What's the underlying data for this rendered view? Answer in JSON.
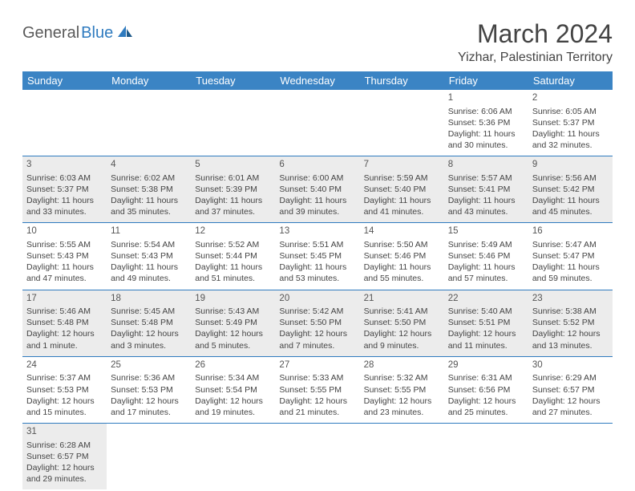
{
  "logo": {
    "part1": "General",
    "part2": "Blue"
  },
  "title": "March 2024",
  "location": "Yizhar, Palestinian Territory",
  "day_headers": [
    "Sunday",
    "Monday",
    "Tuesday",
    "Wednesday",
    "Thursday",
    "Friday",
    "Saturday"
  ],
  "colors": {
    "header_bg": "#3b84c4",
    "header_text": "#ffffff",
    "border": "#2f7bbf",
    "shaded_row": "#ececec",
    "logo_gray": "#5a5a5a",
    "logo_blue": "#2f7bbf"
  },
  "weeks": [
    {
      "shaded": false,
      "cells": [
        {
          "empty": true
        },
        {
          "empty": true
        },
        {
          "empty": true
        },
        {
          "empty": true
        },
        {
          "empty": true
        },
        {
          "day": "1",
          "sunrise": "Sunrise: 6:06 AM",
          "sunset": "Sunset: 5:36 PM",
          "daylight1": "Daylight: 11 hours",
          "daylight2": "and 30 minutes."
        },
        {
          "day": "2",
          "sunrise": "Sunrise: 6:05 AM",
          "sunset": "Sunset: 5:37 PM",
          "daylight1": "Daylight: 11 hours",
          "daylight2": "and 32 minutes."
        }
      ]
    },
    {
      "shaded": true,
      "cells": [
        {
          "day": "3",
          "sunrise": "Sunrise: 6:03 AM",
          "sunset": "Sunset: 5:37 PM",
          "daylight1": "Daylight: 11 hours",
          "daylight2": "and 33 minutes."
        },
        {
          "day": "4",
          "sunrise": "Sunrise: 6:02 AM",
          "sunset": "Sunset: 5:38 PM",
          "daylight1": "Daylight: 11 hours",
          "daylight2": "and 35 minutes."
        },
        {
          "day": "5",
          "sunrise": "Sunrise: 6:01 AM",
          "sunset": "Sunset: 5:39 PM",
          "daylight1": "Daylight: 11 hours",
          "daylight2": "and 37 minutes."
        },
        {
          "day": "6",
          "sunrise": "Sunrise: 6:00 AM",
          "sunset": "Sunset: 5:40 PM",
          "daylight1": "Daylight: 11 hours",
          "daylight2": "and 39 minutes."
        },
        {
          "day": "7",
          "sunrise": "Sunrise: 5:59 AM",
          "sunset": "Sunset: 5:40 PM",
          "daylight1": "Daylight: 11 hours",
          "daylight2": "and 41 minutes."
        },
        {
          "day": "8",
          "sunrise": "Sunrise: 5:57 AM",
          "sunset": "Sunset: 5:41 PM",
          "daylight1": "Daylight: 11 hours",
          "daylight2": "and 43 minutes."
        },
        {
          "day": "9",
          "sunrise": "Sunrise: 5:56 AM",
          "sunset": "Sunset: 5:42 PM",
          "daylight1": "Daylight: 11 hours",
          "daylight2": "and 45 minutes."
        }
      ]
    },
    {
      "shaded": false,
      "cells": [
        {
          "day": "10",
          "sunrise": "Sunrise: 5:55 AM",
          "sunset": "Sunset: 5:43 PM",
          "daylight1": "Daylight: 11 hours",
          "daylight2": "and 47 minutes."
        },
        {
          "day": "11",
          "sunrise": "Sunrise: 5:54 AM",
          "sunset": "Sunset: 5:43 PM",
          "daylight1": "Daylight: 11 hours",
          "daylight2": "and 49 minutes."
        },
        {
          "day": "12",
          "sunrise": "Sunrise: 5:52 AM",
          "sunset": "Sunset: 5:44 PM",
          "daylight1": "Daylight: 11 hours",
          "daylight2": "and 51 minutes."
        },
        {
          "day": "13",
          "sunrise": "Sunrise: 5:51 AM",
          "sunset": "Sunset: 5:45 PM",
          "daylight1": "Daylight: 11 hours",
          "daylight2": "and 53 minutes."
        },
        {
          "day": "14",
          "sunrise": "Sunrise: 5:50 AM",
          "sunset": "Sunset: 5:46 PM",
          "daylight1": "Daylight: 11 hours",
          "daylight2": "and 55 minutes."
        },
        {
          "day": "15",
          "sunrise": "Sunrise: 5:49 AM",
          "sunset": "Sunset: 5:46 PM",
          "daylight1": "Daylight: 11 hours",
          "daylight2": "and 57 minutes."
        },
        {
          "day": "16",
          "sunrise": "Sunrise: 5:47 AM",
          "sunset": "Sunset: 5:47 PM",
          "daylight1": "Daylight: 11 hours",
          "daylight2": "and 59 minutes."
        }
      ]
    },
    {
      "shaded": true,
      "cells": [
        {
          "day": "17",
          "sunrise": "Sunrise: 5:46 AM",
          "sunset": "Sunset: 5:48 PM",
          "daylight1": "Daylight: 12 hours",
          "daylight2": "and 1 minute."
        },
        {
          "day": "18",
          "sunrise": "Sunrise: 5:45 AM",
          "sunset": "Sunset: 5:48 PM",
          "daylight1": "Daylight: 12 hours",
          "daylight2": "and 3 minutes."
        },
        {
          "day": "19",
          "sunrise": "Sunrise: 5:43 AM",
          "sunset": "Sunset: 5:49 PM",
          "daylight1": "Daylight: 12 hours",
          "daylight2": "and 5 minutes."
        },
        {
          "day": "20",
          "sunrise": "Sunrise: 5:42 AM",
          "sunset": "Sunset: 5:50 PM",
          "daylight1": "Daylight: 12 hours",
          "daylight2": "and 7 minutes."
        },
        {
          "day": "21",
          "sunrise": "Sunrise: 5:41 AM",
          "sunset": "Sunset: 5:50 PM",
          "daylight1": "Daylight: 12 hours",
          "daylight2": "and 9 minutes."
        },
        {
          "day": "22",
          "sunrise": "Sunrise: 5:40 AM",
          "sunset": "Sunset: 5:51 PM",
          "daylight1": "Daylight: 12 hours",
          "daylight2": "and 11 minutes."
        },
        {
          "day": "23",
          "sunrise": "Sunrise: 5:38 AM",
          "sunset": "Sunset: 5:52 PM",
          "daylight1": "Daylight: 12 hours",
          "daylight2": "and 13 minutes."
        }
      ]
    },
    {
      "shaded": false,
      "cells": [
        {
          "day": "24",
          "sunrise": "Sunrise: 5:37 AM",
          "sunset": "Sunset: 5:53 PM",
          "daylight1": "Daylight: 12 hours",
          "daylight2": "and 15 minutes."
        },
        {
          "day": "25",
          "sunrise": "Sunrise: 5:36 AM",
          "sunset": "Sunset: 5:53 PM",
          "daylight1": "Daylight: 12 hours",
          "daylight2": "and 17 minutes."
        },
        {
          "day": "26",
          "sunrise": "Sunrise: 5:34 AM",
          "sunset": "Sunset: 5:54 PM",
          "daylight1": "Daylight: 12 hours",
          "daylight2": "and 19 minutes."
        },
        {
          "day": "27",
          "sunrise": "Sunrise: 5:33 AM",
          "sunset": "Sunset: 5:55 PM",
          "daylight1": "Daylight: 12 hours",
          "daylight2": "and 21 minutes."
        },
        {
          "day": "28",
          "sunrise": "Sunrise: 5:32 AM",
          "sunset": "Sunset: 5:55 PM",
          "daylight1": "Daylight: 12 hours",
          "daylight2": "and 23 minutes."
        },
        {
          "day": "29",
          "sunrise": "Sunrise: 6:31 AM",
          "sunset": "Sunset: 6:56 PM",
          "daylight1": "Daylight: 12 hours",
          "daylight2": "and 25 minutes."
        },
        {
          "day": "30",
          "sunrise": "Sunrise: 6:29 AM",
          "sunset": "Sunset: 6:57 PM",
          "daylight1": "Daylight: 12 hours",
          "daylight2": "and 27 minutes."
        }
      ]
    },
    {
      "shaded": true,
      "last": true,
      "cells": [
        {
          "day": "31",
          "sunrise": "Sunrise: 6:28 AM",
          "sunset": "Sunset: 6:57 PM",
          "daylight1": "Daylight: 12 hours",
          "daylight2": "and 29 minutes."
        },
        {
          "empty": true
        },
        {
          "empty": true
        },
        {
          "empty": true
        },
        {
          "empty": true
        },
        {
          "empty": true
        },
        {
          "empty": true
        }
      ]
    }
  ]
}
